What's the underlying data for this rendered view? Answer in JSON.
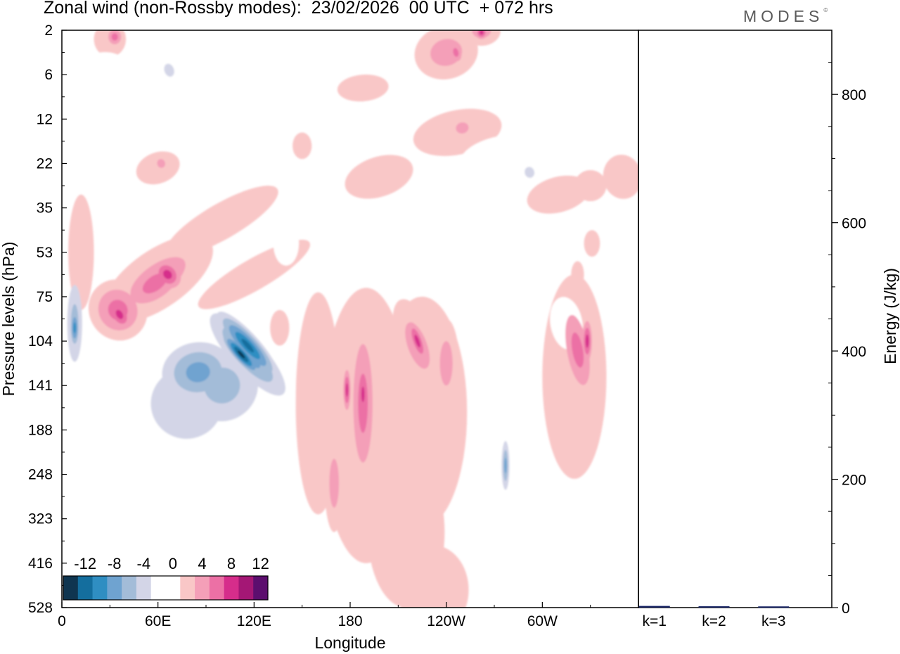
{
  "header": {
    "title": "Zonal wind (non-Rossby modes):  23/02/2026  00 UTC  + 072 hrs",
    "brand": "MODES",
    "brand_mark": "©"
  },
  "chart_data": [
    {
      "type": "heatmap",
      "title": "Zonal wind (non-Rossby modes):  23/02/2026  00 UTC  + 072 hrs",
      "xlabel": "Longitude",
      "ylabel": "Pressure levels (hPa)",
      "xticks": [
        "0",
        "60E",
        "120E",
        "180",
        "120W",
        "60W"
      ],
      "xtick_values": [
        0,
        60,
        120,
        180,
        240,
        300
      ],
      "xlim": [
        0,
        360
      ],
      "yticks": [
        "2",
        "6",
        "12",
        "22",
        "35",
        "53",
        "75",
        "104",
        "141",
        "188",
        "248",
        "323",
        "416",
        "528"
      ],
      "colorbar": {
        "labels": [
          "-12",
          "-8",
          "-4",
          "0",
          "4",
          "8",
          "12"
        ],
        "colors": [
          "#0f3550",
          "#146e9e",
          "#2f8ec2",
          "#6fa3d0",
          "#a3bcd8",
          "#d3d5e7",
          "#ffffff",
          "#ffffff",
          "#f9c7c7",
          "#f49fb8",
          "#ec70a5",
          "#d62d8b",
          "#a41775",
          "#5c0e6e"
        ]
      },
      "features": [
        {
          "lon": 113,
          "level_index": 7.2,
          "value": -14,
          "note": "strongest easterly core near 104 hPa"
        },
        {
          "lon": 88,
          "level_index": 7.5,
          "value": -10
        },
        {
          "lon": 8,
          "level_index": 6.7,
          "value": -10
        },
        {
          "lon": 276,
          "level_index": 9.8,
          "value": -8
        },
        {
          "lon": 68,
          "level_index": 5.5,
          "value": 10
        },
        {
          "lon": 35,
          "level_index": 6.4,
          "value": 8
        },
        {
          "lon": 189,
          "level_index": 8.3,
          "value": 8
        },
        {
          "lon": 222,
          "level_index": 7.0,
          "value": 8
        },
        {
          "lon": 325,
          "level_index": 7.0,
          "value": 8
        }
      ]
    },
    {
      "type": "bar",
      "ylabel": "Energy (J/kg)",
      "categories": [
        "k=1",
        "k=2",
        "k=3"
      ],
      "values": [
        1.5,
        1.0,
        0.8
      ],
      "ylim": [
        0,
        900
      ],
      "yticks": [
        0,
        200,
        400,
        600,
        800
      ]
    }
  ]
}
